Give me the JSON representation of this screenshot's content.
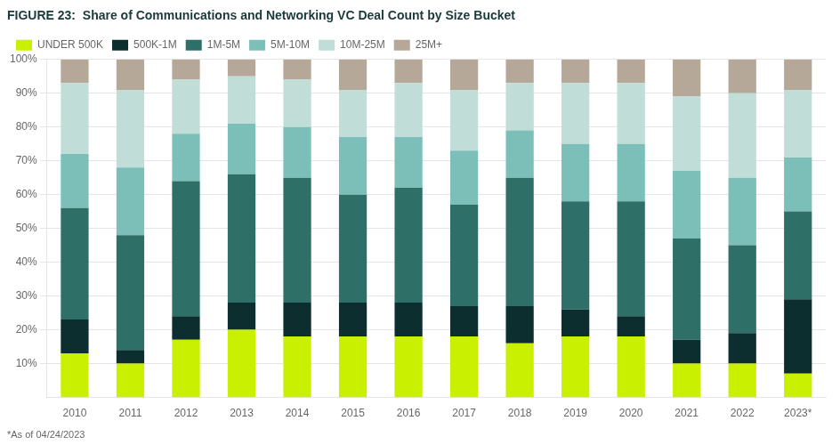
{
  "chart_data": {
    "type": "bar",
    "title": "FIGURE 23:  Share of Communications and Networking VC Deal Count by Size Bucket",
    "annotations": [
      "*As of 04/24/2023"
    ],
    "categories": [
      "2010",
      "2011",
      "2012",
      "2013",
      "2014",
      "2015",
      "2016",
      "2017",
      "2018",
      "2019",
      "2020",
      "2021",
      "2022",
      "2023*"
    ],
    "series": [
      {
        "name": "UNDER 500K",
        "color": "#c8f000",
        "values": [
          0.13,
          0.1,
          0.17,
          0.2,
          0.18,
          0.18,
          0.18,
          0.18,
          0.16,
          0.18,
          0.18,
          0.1,
          0.1,
          0.07
        ]
      },
      {
        "name": "500K-1M",
        "color": "#0d2e2e",
        "values": [
          0.1,
          0.04,
          0.07,
          0.08,
          0.1,
          0.1,
          0.1,
          0.09,
          0.11,
          0.08,
          0.06,
          0.07,
          0.09,
          0.22
        ]
      },
      {
        "name": "1M-5M",
        "color": "#2e7068",
        "values": [
          0.33,
          0.34,
          0.4,
          0.38,
          0.37,
          0.32,
          0.34,
          0.3,
          0.38,
          0.32,
          0.34,
          0.3,
          0.26,
          0.26
        ]
      },
      {
        "name": "5M-10M",
        "color": "#7bbfb8",
        "values": [
          0.16,
          0.2,
          0.14,
          0.15,
          0.15,
          0.17,
          0.15,
          0.16,
          0.14,
          0.17,
          0.17,
          0.2,
          0.2,
          0.16
        ]
      },
      {
        "name": "10M-25M",
        "color": "#c0ddd8",
        "values": [
          0.21,
          0.23,
          0.16,
          0.14,
          0.14,
          0.14,
          0.16,
          0.18,
          0.14,
          0.18,
          0.18,
          0.22,
          0.25,
          0.2
        ]
      },
      {
        "name": "25M+",
        "color": "#b5a898",
        "values": [
          0.07,
          0.09,
          0.06,
          0.05,
          0.06,
          0.09,
          0.07,
          0.09,
          0.07,
          0.07,
          0.07,
          0.11,
          0.1,
          0.09
        ]
      }
    ],
    "stacked": true,
    "ylim": [
      0,
      1.0
    ],
    "yticks": [
      {
        "value": 0.1,
        "label": "10%"
      },
      {
        "value": 0.2,
        "label": "20%"
      },
      {
        "value": 0.3,
        "label": "30%"
      },
      {
        "value": 0.4,
        "label": "40%"
      },
      {
        "value": 0.5,
        "label": "50%"
      },
      {
        "value": 0.6,
        "label": "60%"
      },
      {
        "value": 0.7,
        "label": "70%"
      },
      {
        "value": 0.8,
        "label": "80%"
      },
      {
        "value": 0.9,
        "label": "90%"
      },
      {
        "value": 1.0,
        "label": "100%"
      }
    ],
    "grid": true,
    "legend": "upper left"
  }
}
